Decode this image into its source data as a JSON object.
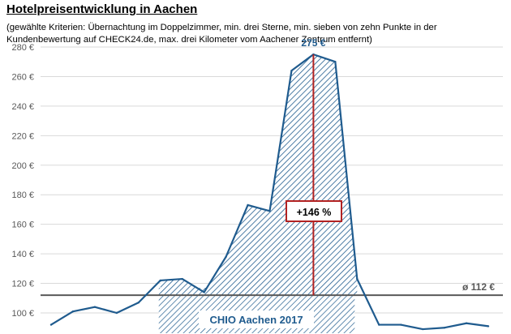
{
  "title": "Hotelpreisentwicklung in Aachen",
  "subtitle": "(gewählte Kriterien: Übernachtung im Doppelzimmer, min. drei Sterne, min. sieben von zehn Punkte in der Kundenbewertung auf CHECK24.de, max. drei Kilometer vom Aachener Zentrum entfernt)",
  "colors": {
    "line": "#1f5b8e",
    "average": "#595959",
    "marker": "#b22222",
    "grid": "#d9d9d9"
  },
  "chart_data": {
    "type": "area",
    "title": "Hotelpreisentwicklung in Aachen",
    "ylim": [
      90,
      290
    ],
    "y_ticks": [
      "100 €",
      "120 €",
      "140 €",
      "160 €",
      "180 €",
      "200 €",
      "220 €",
      "240 €",
      "260 €",
      "280 €"
    ],
    "y_tick_values": [
      100,
      120,
      140,
      160,
      180,
      200,
      220,
      240,
      260,
      280
    ],
    "grid": true,
    "series": [
      {
        "values": [
          92,
          101,
          104,
          100,
          107,
          122,
          123,
          114,
          138,
          173,
          169,
          264,
          275,
          270,
          123,
          92,
          92,
          89,
          90,
          93,
          91
        ]
      }
    ],
    "average": {
      "value": 112,
      "label": "ø 112 €"
    },
    "peak": {
      "index": 12,
      "value": 275,
      "label": "275 €"
    },
    "change_label": "+146 %",
    "highlight": {
      "start_index": 5,
      "end_index": 14,
      "label": "CHIO Aachen 2017"
    }
  }
}
